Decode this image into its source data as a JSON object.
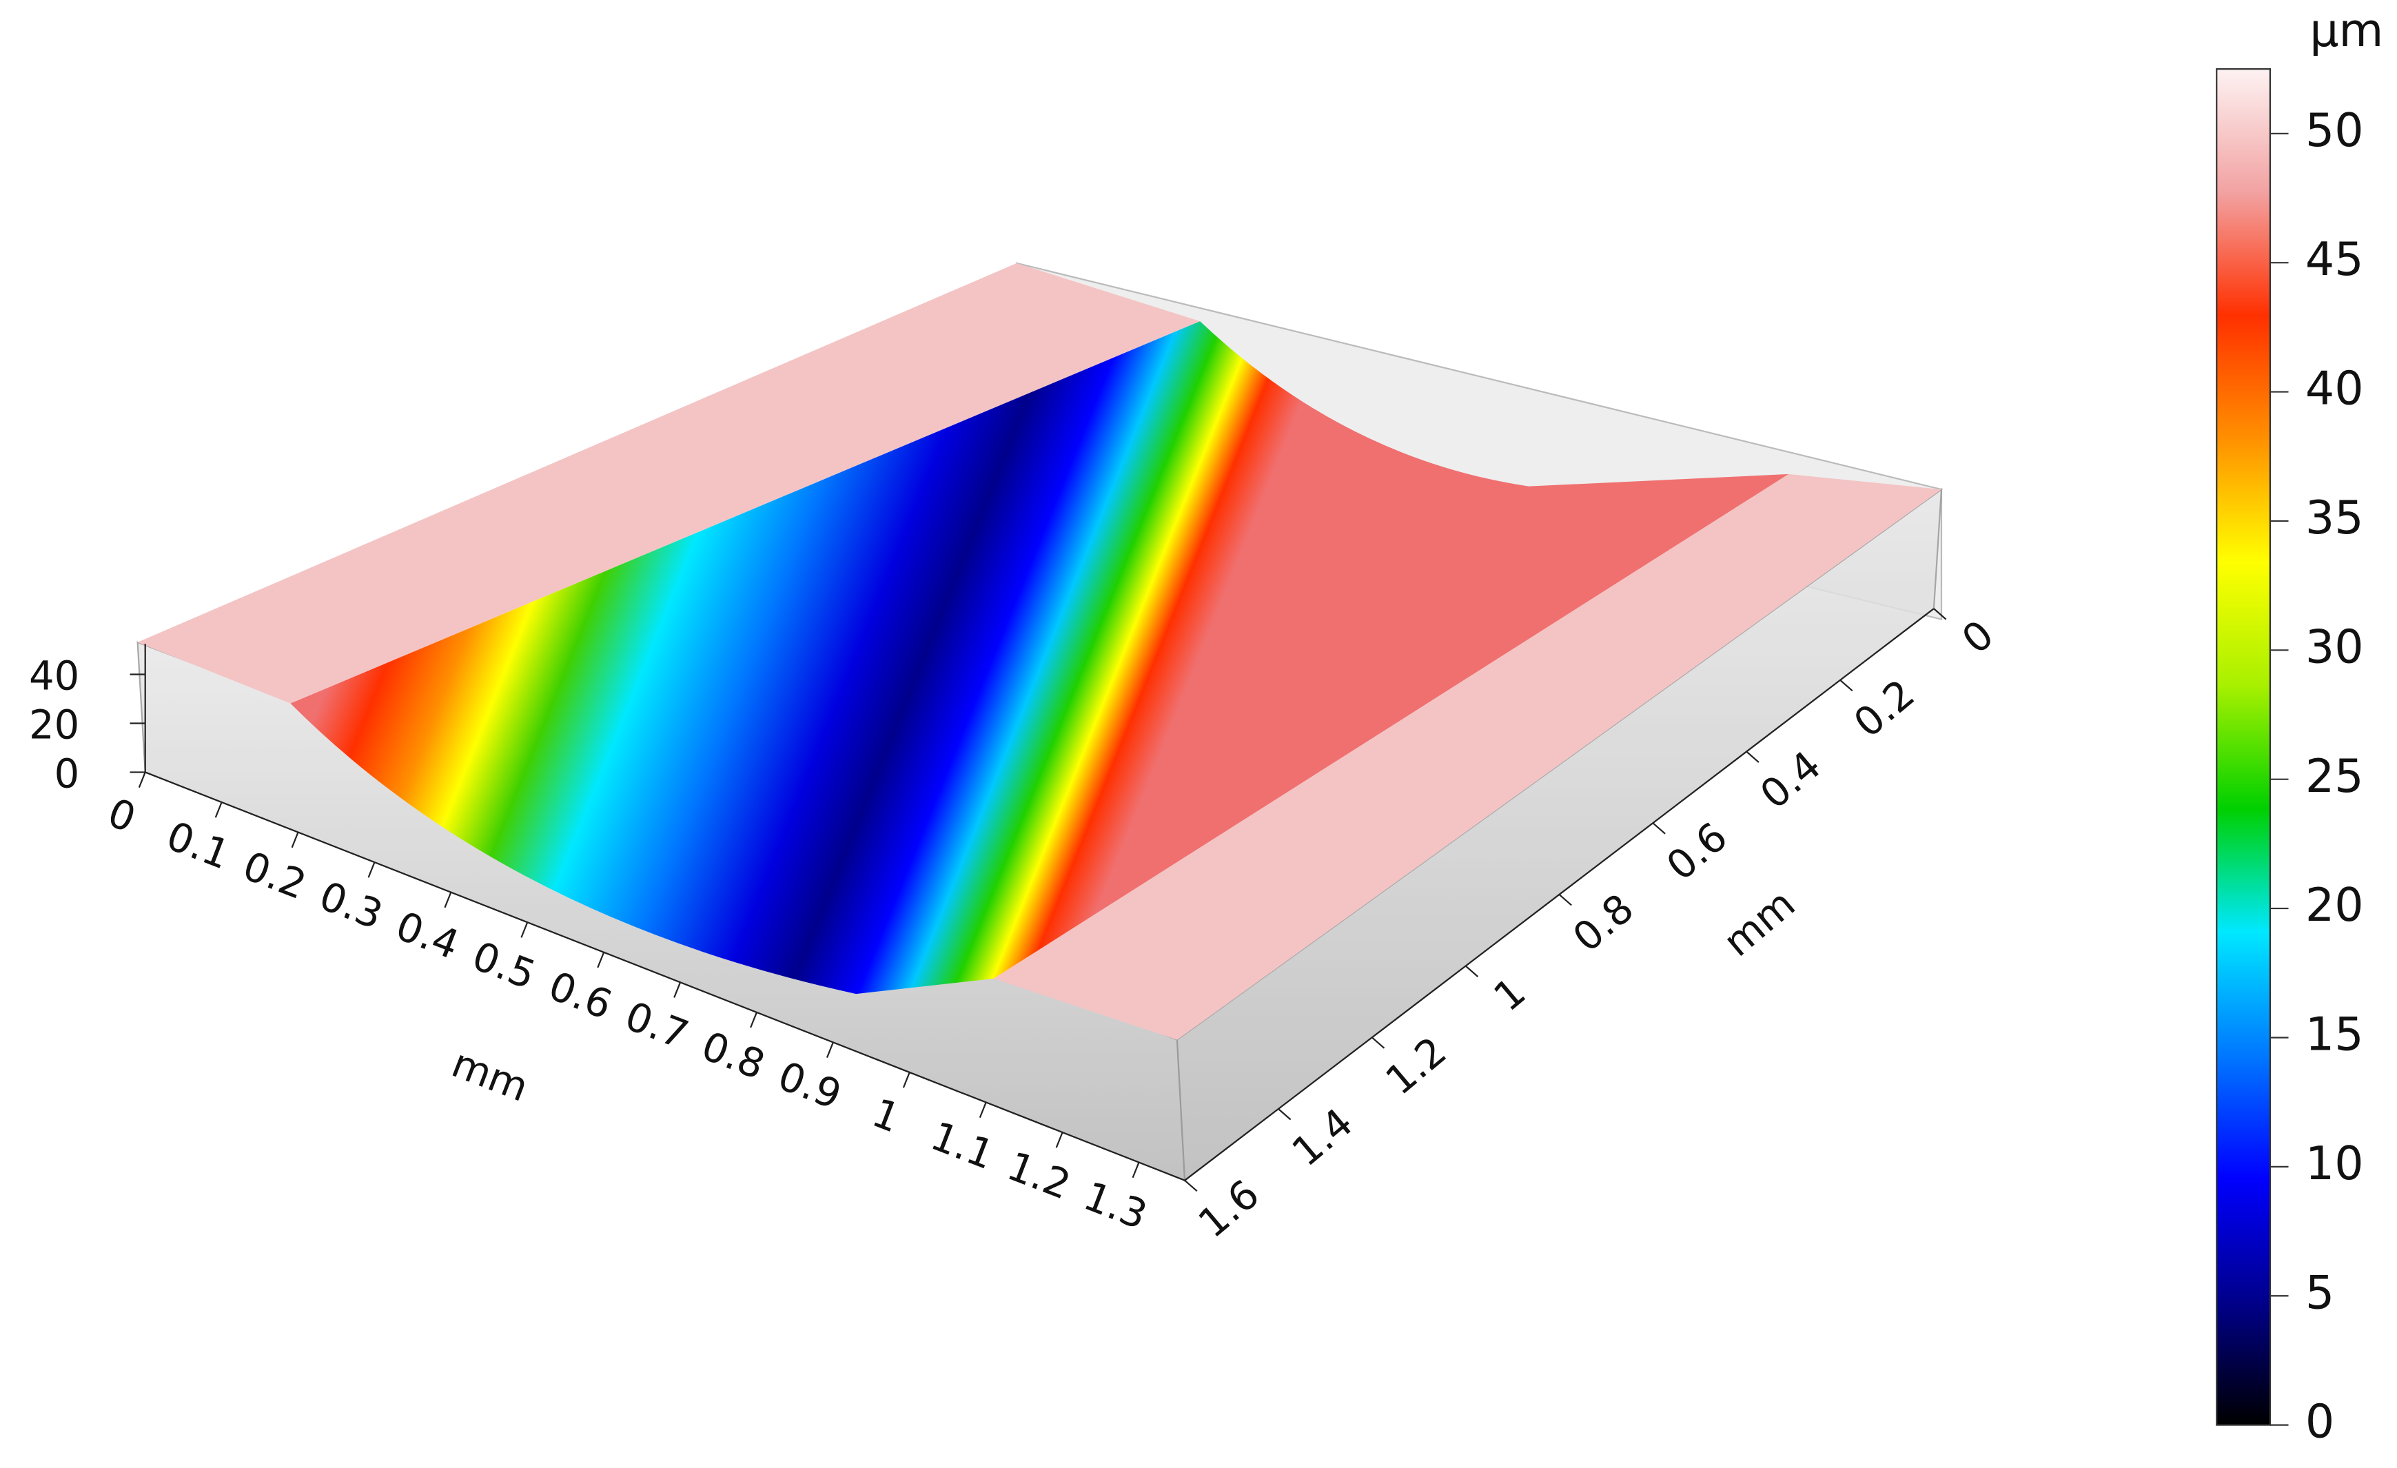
{
  "chart_data": {
    "type": "surface",
    "x_label": "mm",
    "y_label": "mm",
    "xlim": [
      0,
      1.36
    ],
    "xticks": [
      0,
      0.1,
      0.2,
      0.3,
      0.4,
      0.5,
      0.6,
      0.7,
      0.8,
      0.9,
      1,
      1.1,
      1.2,
      1.3
    ],
    "ylim": [
      0,
      1.6
    ],
    "yticks": [
      0,
      0.2,
      0.4,
      0.6,
      0.8,
      1,
      1.2,
      1.4,
      1.6
    ],
    "zlim": [
      0,
      52.5
    ],
    "zticks": [
      0,
      20,
      40
    ],
    "colorbar": {
      "label": "µm",
      "ticks": [
        0,
        5,
        10,
        15,
        20,
        25,
        30,
        35,
        40,
        45,
        50
      ]
    },
    "colormap": [
      "#000000",
      "#00008b",
      "#0000ff",
      "#0078ff",
      "#00e8ff",
      "#00d000",
      "#a8f000",
      "#ffff00",
      "#ff9000",
      "#ff3000",
      "#f2a2a2",
      "#fdf2f2"
    ]
  }
}
